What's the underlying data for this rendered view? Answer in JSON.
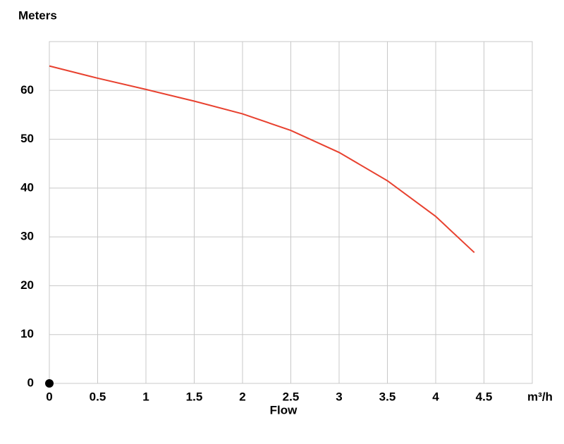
{
  "chart_data": {
    "type": "line",
    "y_label": "Meters",
    "x_label": "Flow",
    "series": [
      {
        "color": "#e8412f",
        "x": [
          0,
          0.5,
          1,
          1.5,
          2,
          2.5,
          3,
          3.5,
          4,
          4.4
        ],
        "values": [
          65,
          62.5,
          60.2,
          57.8,
          55.2,
          51.8,
          47.3,
          41.5,
          34.2,
          26.8
        ]
      }
    ],
    "marker": {
      "x": 0,
      "y": 0,
      "color": "#000000"
    },
    "xlim": [
      0,
      5
    ],
    "xticks": [
      0,
      0.5,
      1,
      1.5,
      2,
      2.5,
      3,
      3.5,
      4,
      4.5,
      {
        "value": 5,
        "label": "m³/h"
      }
    ],
    "ylim": [
      0,
      70
    ],
    "yticks": [
      0,
      10,
      20,
      30,
      40,
      50,
      60
    ],
    "grid": true
  }
}
